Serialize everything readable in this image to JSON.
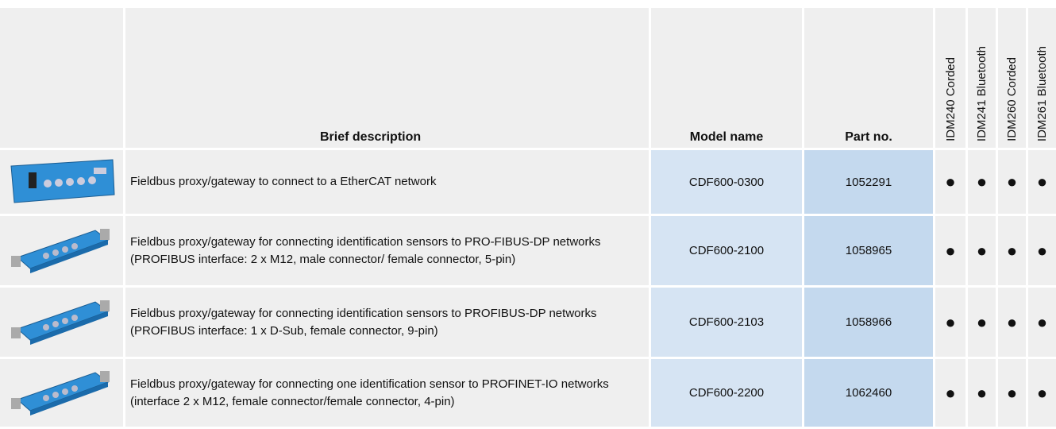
{
  "table": {
    "header": [
      "Brief description",
      "Model name",
      "Part no.",
      "IDM240 Corded",
      "IDM241 Bluetooth",
      "IDM260 Corded",
      "IDM261 Bluetooth"
    ],
    "rows": [
      {
        "description": "Fieldbus proxy/gateway to connect to a EtherCAT network",
        "model": "CDF600-0300",
        "part": "1052291",
        "marks": [
          "●",
          "●",
          "●",
          "●"
        ]
      },
      {
        "description": "Fieldbus proxy/gateway for connecting identification sensors to PRO-FIBUS-DP networks (PROFIBUS interface: 2 x M12, male connector/ female connector, 5-pin)",
        "model": "CDF600-2100",
        "part": "1058965",
        "marks": [
          "●",
          "●",
          "●",
          "●"
        ]
      },
      {
        "description": "Fieldbus proxy/gateway for connecting identification sensors to PROFIBUS-DP networks (PROFIBUS interface: 1 x D-Sub, female connector, 9-pin)",
        "model": "CDF600-2103",
        "part": "1058966",
        "marks": [
          "●",
          "●",
          "●",
          "●"
        ]
      },
      {
        "description": "Fieldbus proxy/gateway for connecting one identification sensor to PROFINET-IO networks (interface 2 x M12, female connector/female connector, 4-pin)",
        "model": "CDF600-2200",
        "part": "1062460",
        "marks": [
          "●",
          "●",
          "●",
          "●"
        ]
      }
    ]
  }
}
